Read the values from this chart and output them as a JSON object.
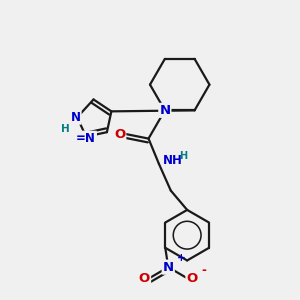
{
  "bg_color": "#f0f0f0",
  "line_color": "#1a1a1a",
  "bond_width": 1.6,
  "atom_colors": {
    "N": "#0000cc",
    "O": "#cc0000",
    "H": "#008080",
    "C": "#1a1a1a"
  },
  "font_size": 8.5,
  "figsize": [
    3.0,
    3.0
  ],
  "dpi": 100
}
